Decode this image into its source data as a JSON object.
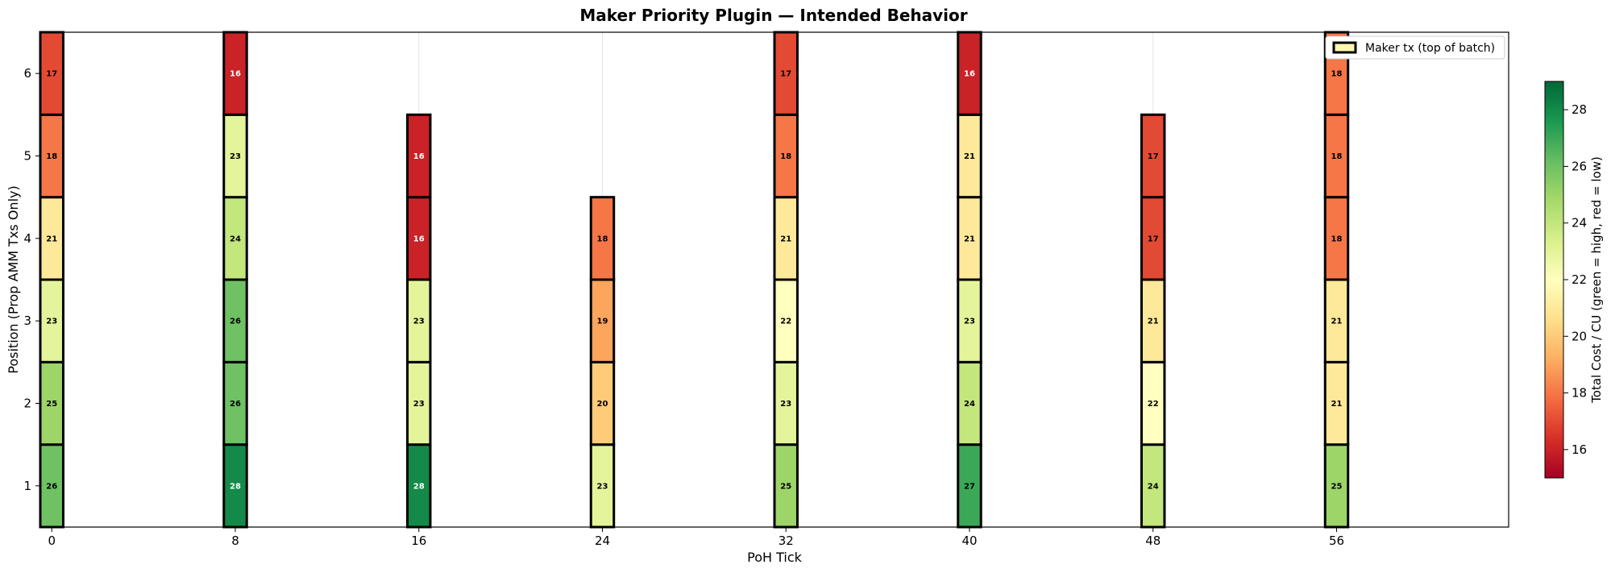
{
  "chart_data": {
    "type": "heatmap",
    "title": "Maker Priority Plugin — Intended Behavior",
    "xlabel": "PoH Tick",
    "ylabel": "Position (Prop AMM Txs Only)",
    "x_ticks": [
      0,
      8,
      16,
      24,
      32,
      40,
      48,
      56
    ],
    "y_ticks": [
      1,
      2,
      3,
      4,
      5,
      6
    ],
    "xlim": [
      -0.5,
      63.5
    ],
    "ylim": [
      0.5,
      6.5
    ],
    "grid": "x-only",
    "columns": [
      {
        "tick": 0,
        "values": [
          26,
          25,
          23,
          21,
          18,
          17
        ]
      },
      {
        "tick": 8,
        "values": [
          28,
          26,
          26,
          24,
          23,
          16
        ]
      },
      {
        "tick": 16,
        "values": [
          28,
          23,
          23,
          16,
          16
        ]
      },
      {
        "tick": 24,
        "values": [
          23,
          20,
          19,
          18
        ]
      },
      {
        "tick": 32,
        "values": [
          25,
          23,
          22,
          21,
          18,
          17
        ]
      },
      {
        "tick": 40,
        "values": [
          27,
          24,
          23,
          21,
          21,
          16
        ]
      },
      {
        "tick": 48,
        "values": [
          24,
          22,
          21,
          17,
          17
        ]
      },
      {
        "tick": 56,
        "values": [
          25,
          21,
          21,
          18,
          18,
          18
        ]
      }
    ],
    "legend": {
      "label": "Maker tx (top of batch)",
      "placement": "top-right"
    },
    "colorbar": {
      "label": "Total Cost / CU  (green = high, red = low)",
      "colormap": "RdYlGn",
      "range": [
        15,
        29
      ],
      "ticks": [
        16,
        18,
        20,
        22,
        24,
        26,
        28
      ]
    }
  }
}
